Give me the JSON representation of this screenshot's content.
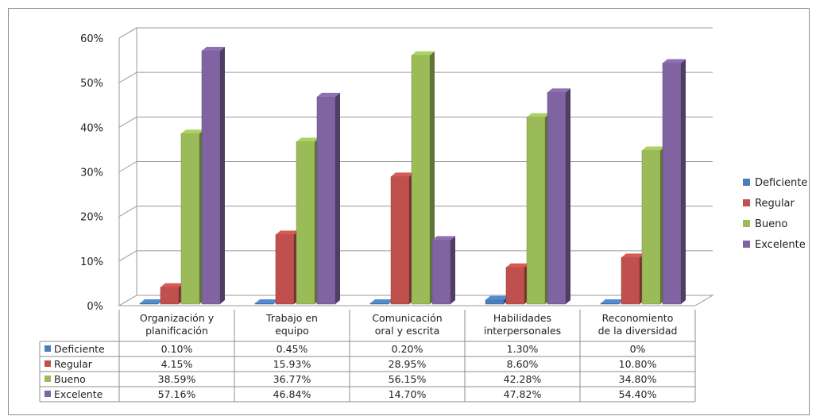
{
  "chart_data": {
    "type": "bar",
    "categories": [
      [
        "Organización y",
        "planificación"
      ],
      [
        "Trabajo en",
        "equipo"
      ],
      [
        "Comunicación",
        "oral y escrita"
      ],
      [
        "Habilidades",
        "interpersonales"
      ],
      [
        "Reconomiento",
        "de la diversidad"
      ]
    ],
    "series": [
      {
        "name": "Deficiente",
        "values": [
          0.1,
          0.45,
          0.2,
          1.3,
          0
        ],
        "labels": [
          "0.10%",
          "0.45%",
          "0.20%",
          "1.30%",
          "0%"
        ],
        "color": "#4a7ebb"
      },
      {
        "name": "Regular",
        "values": [
          4.15,
          15.93,
          28.95,
          8.6,
          10.8
        ],
        "labels": [
          "4.15%",
          "15.93%",
          "28.95%",
          "8.60%",
          "10.80%"
        ],
        "color": "#c0504d"
      },
      {
        "name": "Bueno",
        "values": [
          38.59,
          36.77,
          56.15,
          42.28,
          34.8
        ],
        "labels": [
          "38.59%",
          "36.77%",
          "56.15%",
          "42.28%",
          "34.80%"
        ],
        "color": "#9bbb59"
      },
      {
        "name": "Excelente",
        "values": [
          57.16,
          46.84,
          14.7,
          47.82,
          54.4
        ],
        "labels": [
          "57.16%",
          "46.84%",
          "14.70%",
          "47.82%",
          "54.40%"
        ],
        "color": "#8064a2"
      }
    ],
    "yticks": [
      "0%",
      "10%",
      "20%",
      "30%",
      "40%",
      "50%",
      "60%"
    ],
    "ylim": [
      0,
      60
    ],
    "grid": true,
    "legend": "right",
    "data_table": true
  }
}
